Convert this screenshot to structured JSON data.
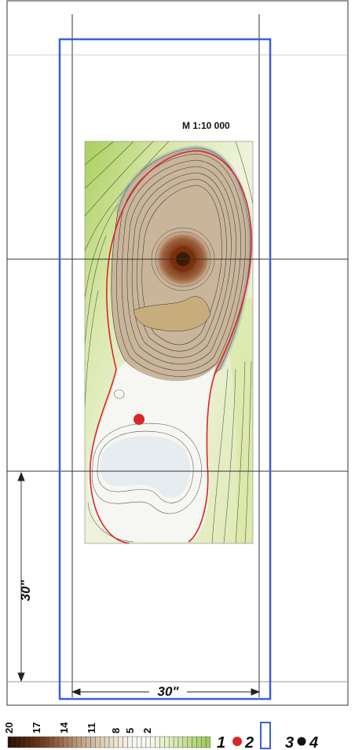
{
  "map": {
    "scale_label": "M 1:10 000",
    "dimension_vertical": "30\"",
    "dimension_horizontal": "30\""
  },
  "legend": {
    "scale_ticks": [
      "20",
      "17",
      "14",
      "11",
      "8",
      "5",
      "2"
    ],
    "items": [
      {
        "key": "1",
        "label": "1"
      },
      {
        "key": "2",
        "label": "2",
        "symbol": "red-dot",
        "color": "#d9262a"
      },
      {
        "key": "3",
        "label": "3",
        "symbol": "blue-frame",
        "color": "#3a5fe0"
      },
      {
        "key": "4",
        "label": "4",
        "symbol": "black-dot",
        "color": "#111111"
      }
    ]
  },
  "colors": {
    "frame": "#3a5fe0",
    "red_isoline": "#d9262a",
    "peak": "#3b1b08",
    "low": "#9fc85a"
  }
}
